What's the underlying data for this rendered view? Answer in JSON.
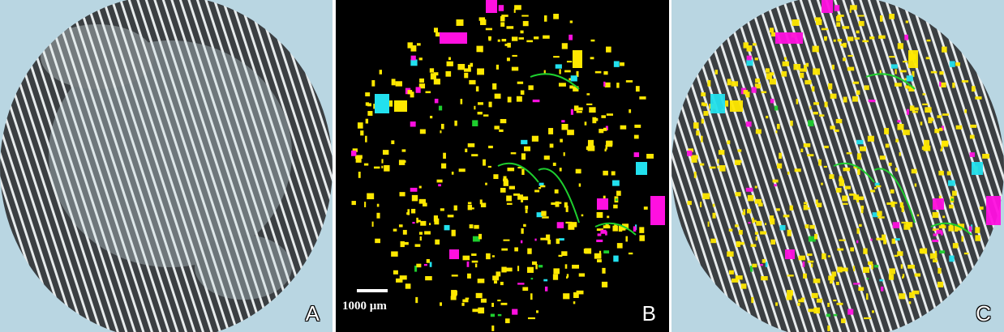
{
  "panels": [
    {
      "id": "A",
      "label": "A"
    },
    {
      "id": "B",
      "label": "B"
    },
    {
      "id": "C",
      "label": "C"
    }
  ],
  "scale_bar": {
    "label": "1000 µm"
  },
  "colors": {
    "yellow": "#ffe800",
    "magenta": "#ff10e0",
    "cyan": "#22e0ee",
    "green": "#1ecf2e",
    "filter_background": "#b9d6e2",
    "mask_background": "#000000"
  }
}
